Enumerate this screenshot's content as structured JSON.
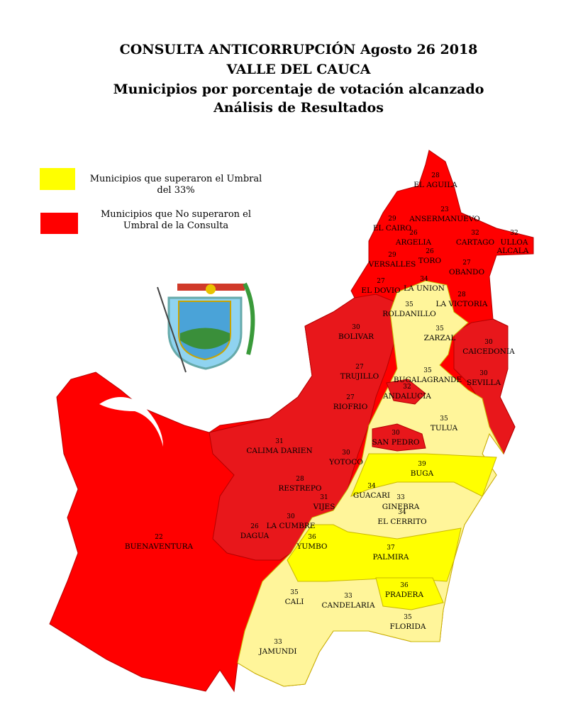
{
  "header": {
    "title_lines": [
      "CONSULTA ANTICORRUPCIÓN  Agosto 26 2018",
      "VALLE DEL CAUCA",
      "Municipios por porcentaje de votación alcanzado",
      "Análisis de Resultados"
    ]
  },
  "legend": [
    {
      "label_lines": [
        "Municipios que superaron el Umbral",
        "del 33%"
      ],
      "color": "#ffff00"
    },
    {
      "label_lines": [
        "Municipios que No superaron el",
        "Umbral de la Consulta"
      ],
      "color": "#ff0000"
    }
  ],
  "municipalities": [
    {
      "name": "EL AGUILA",
      "pct": 28,
      "color": "#ff0000"
    },
    {
      "name": "ANSERMANUEVO",
      "pct": 23,
      "color": "#ff0000"
    },
    {
      "name": "EL CAIRO",
      "pct": 29,
      "color": "#ff0000"
    },
    {
      "name": "ARGELIA",
      "pct": 26,
      "color": "#ff0000"
    },
    {
      "name": "CARTAGO",
      "pct": 32,
      "color": "#ff0000"
    },
    {
      "name": "ULLOA",
      "pct": 32,
      "color": "#ff0000"
    },
    {
      "name": "ALCALA",
      "color": "#ff0000"
    },
    {
      "name": "VERSALLES",
      "pct": 29,
      "color": "#ff0000"
    },
    {
      "name": "TORO",
      "pct": 26,
      "color": "#ff0000"
    },
    {
      "name": "OBANDO",
      "pct": 27,
      "color": "#ff0000"
    },
    {
      "name": "LA UNION",
      "pct": 34,
      "color": "#fff59a"
    },
    {
      "name": "EL DOVIO",
      "pct": 27,
      "color": "#e8171b"
    },
    {
      "name": "ROLDANILLO",
      "pct": 35,
      "color": "#fff59a"
    },
    {
      "name": "LA VICTORIA",
      "pct": 28,
      "color": "#e8171b"
    },
    {
      "name": "BOLIVAR",
      "pct": 30,
      "color": "#e8171b"
    },
    {
      "name": "ZARZAL",
      "pct": 35,
      "color": "#fff59a"
    },
    {
      "name": "CAICEDONIA",
      "pct": 30,
      "color": "#e8171b"
    },
    {
      "name": "TRUJILLO",
      "pct": 27,
      "color": "#e8171b"
    },
    {
      "name": "BUGALAGRANDE",
      "pct": 35,
      "color": "#fff59a"
    },
    {
      "name": "SEVILLA",
      "pct": 30,
      "color": "#e8171b"
    },
    {
      "name": "ANDALUCIA",
      "pct": 32,
      "color": "#e8171b"
    },
    {
      "name": "RIOFRIO",
      "pct": 27,
      "color": "#e8171b"
    },
    {
      "name": "TULUA",
      "pct": 35,
      "color": "#fff59a"
    },
    {
      "name": "SAN PEDRO",
      "pct": 30,
      "color": "#e8171b"
    },
    {
      "name": "CALIMA DARIEN",
      "pct": 31,
      "color": "#e8171b"
    },
    {
      "name": "YOTOCO",
      "pct": 30,
      "color": "#e8171b"
    },
    {
      "name": "BUGA",
      "pct": 39,
      "color": "#ffff00"
    },
    {
      "name": "RESTREPO",
      "pct": 28,
      "color": "#e8171b"
    },
    {
      "name": "GUACARI",
      "pct": 34,
      "color": "#fff59a"
    },
    {
      "name": "GINEBRA",
      "pct": 33,
      "color": "#fff59a"
    },
    {
      "name": "VIJES",
      "pct": 31,
      "color": "#e8171b"
    },
    {
      "name": "EL CERRITO",
      "pct": 34,
      "color": "#fff59a"
    },
    {
      "name": "LA CUMBRE",
      "pct": 30,
      "color": "#e8171b"
    },
    {
      "name": "DAGUA",
      "pct": 26,
      "color": "#e8171b"
    },
    {
      "name": "BUENAVENTURA",
      "pct": 22,
      "color": "#ff0000"
    },
    {
      "name": "YUMBO",
      "pct": 36,
      "color": "#ffff00"
    },
    {
      "name": "PALMIRA",
      "pct": 37,
      "color": "#ffff00"
    },
    {
      "name": "CALI",
      "pct": 35,
      "color": "#fff59a"
    },
    {
      "name": "CANDELARIA",
      "pct": 33,
      "color": "#fff59a"
    },
    {
      "name": "PRADERA",
      "pct": 36,
      "color": "#ffff00"
    },
    {
      "name": "FLORIDA",
      "pct": 35,
      "color": "#fff59a"
    },
    {
      "name": "JAMUNDI",
      "pct": 33,
      "color": "#fff59a"
    }
  ]
}
